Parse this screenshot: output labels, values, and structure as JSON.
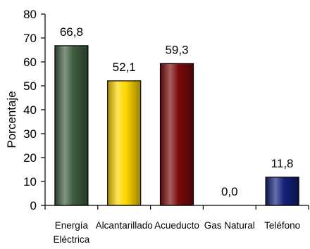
{
  "chart_data": {
    "type": "bar",
    "categories": [
      "Energía Eléctrica",
      "Alcantarillado",
      "Acueducto",
      "Gas Natural",
      "Teléfono"
    ],
    "category_lines": [
      [
        "Energía",
        "Eléctrica"
      ],
      [
        "Alcantarillado"
      ],
      [
        "Acueducto"
      ],
      [
        "Gas Natural"
      ],
      [
        "Teléfono"
      ]
    ],
    "values": [
      66.8,
      52.1,
      59.3,
      0.0,
      11.8
    ],
    "data_labels": [
      "66,8",
      "52,1",
      "59,3",
      "0,0",
      "11,8"
    ],
    "ylabel": "Porcentaje",
    "xlabel": "",
    "ylim": [
      0,
      80
    ],
    "yticks": [
      0,
      10,
      20,
      30,
      40,
      50,
      60,
      70,
      80
    ],
    "grid": false,
    "legend": "none",
    "colors": [
      "#3f5e3f",
      "#ffd700",
      "#7a0a0a",
      "#999999",
      "#14207a"
    ]
  }
}
